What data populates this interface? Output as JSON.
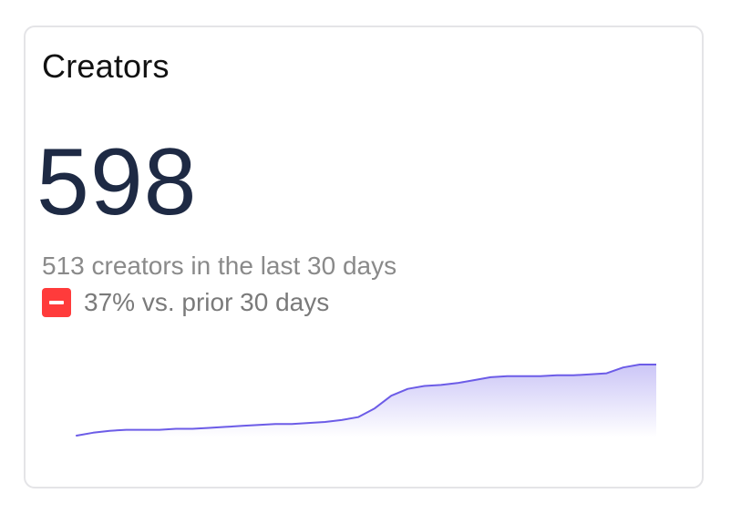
{
  "card": {
    "title": "Creators",
    "value": "598",
    "subtitle": "513 creators in the last 30 days",
    "delta_text": "37% vs. prior 30 days",
    "delta_icon": "minus-icon",
    "delta_color": "#ff3b3b"
  },
  "chart_data": {
    "type": "area",
    "title": "",
    "xlabel": "",
    "ylabel": "",
    "color": "#6c5ce7",
    "grid": false,
    "legend": "none",
    "values": [
      0,
      3,
      5,
      6,
      6,
      6,
      7,
      7,
      8,
      9,
      10,
      11,
      12,
      12,
      13,
      14,
      16,
      19,
      28,
      41,
      48,
      51,
      52,
      54,
      57,
      60,
      61,
      61,
      61,
      62,
      62,
      63,
      64,
      70,
      73,
      73
    ]
  }
}
